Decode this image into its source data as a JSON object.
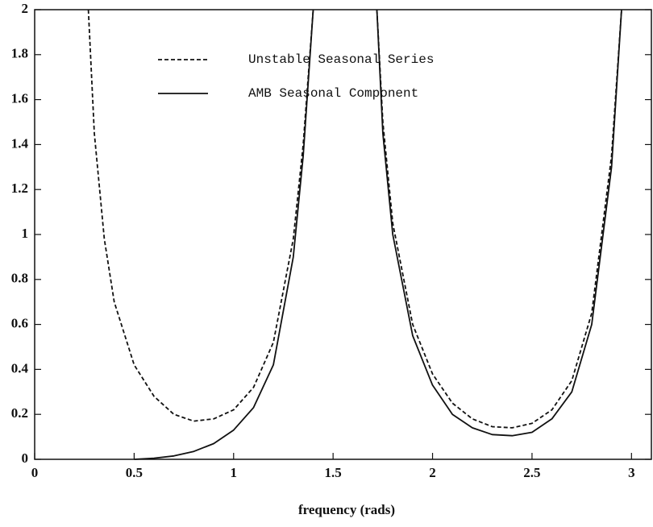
{
  "chart_data": {
    "type": "line",
    "xlabel": "frequency (rads)",
    "x": [
      0.27,
      0.3,
      0.35,
      0.4,
      0.5,
      0.6,
      0.7,
      0.8,
      0.9,
      1.0,
      1.1,
      1.2,
      1.3,
      1.35,
      1.4,
      1.55,
      1.72,
      1.75,
      1.8,
      1.9,
      2.0,
      2.1,
      2.2,
      2.3,
      2.4,
      2.5,
      2.6,
      2.7,
      2.8,
      2.9,
      2.95
    ],
    "series": [
      {
        "name": "Unstable Seasonal Series",
        "color": "#111111",
        "linestyle": "dashed",
        "values": [
          2.0,
          1.45,
          0.98,
          0.7,
          0.42,
          0.28,
          0.2,
          0.17,
          0.18,
          0.22,
          0.32,
          0.52,
          0.98,
          1.4,
          2.0,
          null,
          2.0,
          1.5,
          1.05,
          0.6,
          0.38,
          0.25,
          0.18,
          0.145,
          0.14,
          0.16,
          0.22,
          0.35,
          0.65,
          1.35,
          2.0
        ]
      },
      {
        "name": "AMB Seasonal Component",
        "color": "#111111",
        "linestyle": "solid",
        "values": [
          null,
          null,
          null,
          null,
          0.0,
          0.005,
          0.015,
          0.035,
          0.07,
          0.13,
          0.23,
          0.42,
          0.9,
          1.35,
          2.0,
          null,
          2.0,
          1.45,
          1.0,
          0.55,
          0.33,
          0.2,
          0.14,
          0.11,
          0.105,
          0.12,
          0.18,
          0.3,
          0.6,
          1.3,
          2.0
        ]
      }
    ],
    "xlim": [
      0,
      3.1
    ],
    "xticks": [
      0,
      0.5,
      1,
      1.5,
      2,
      2.5,
      3
    ],
    "ylim": [
      0,
      2
    ],
    "yticks": [
      0,
      0.2,
      0.4,
      0.6,
      0.8,
      1,
      1.2,
      1.4,
      1.6,
      1.8,
      2
    ]
  }
}
